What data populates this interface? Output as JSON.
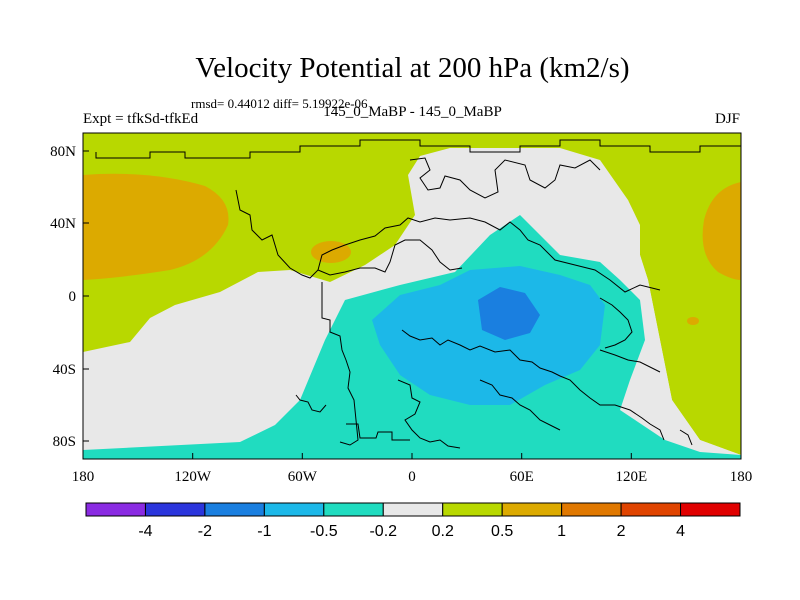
{
  "title": "Velocity Potential at 200 hPa (km2/s)",
  "stats": "rmsd= 0.44012 diff= 5.19922e-06",
  "left_label": "Expt = tfkSd-tfkEd",
  "center_label": "145_0_MaBP - 145_0_MaBP",
  "right_label": "DJF",
  "x_ticks": [
    "180",
    "120W",
    "60W",
    "0",
    "60E",
    "120E",
    "180"
  ],
  "y_ticks": [
    "80N",
    "40N",
    "0",
    "40S",
    "80S"
  ],
  "colorbar": {
    "colors": [
      "#8a2be2",
      "#2b35dc",
      "#1a7fe0",
      "#1cb8e8",
      "#20dcc0",
      "#e8e8e8",
      "#b8d800",
      "#dcaa00",
      "#e07800",
      "#e04400",
      "#e00000"
    ],
    "labels": [
      "-4",
      "-2",
      "-1",
      "-0.5",
      "-0.2",
      "0.2",
      "0.5",
      "1",
      "2",
      "4"
    ]
  },
  "legend_colors": {
    "pos_weak": "#b8d800",
    "pos_mid": "#dcaa00",
    "neutral": "#e8e8e8",
    "neg_weak": "#20dcc0",
    "neg_mid": "#1cb8e8",
    "neg_strong": "#1a7fe0"
  }
}
